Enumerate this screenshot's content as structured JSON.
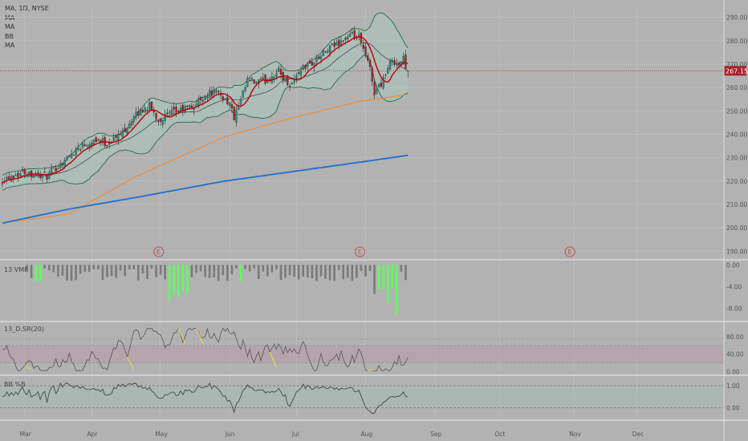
{
  "legend": {
    "title": "MA, 1D, NYSE",
    "studies": [
      "MA",
      "MA",
      "BB",
      "MA"
    ]
  },
  "price_tag": "267.15",
  "earnings_marker": "E",
  "pane_labels": {
    "volume": "13 VMF",
    "stoch": "13_D.SR(20)",
    "bb": "BB %B"
  },
  "colors": {
    "background": "#b2b2b2",
    "up_candle": "#2a8f86",
    "down_candle": "#b01e27",
    "fast_ma": "#c00000",
    "band": "#1f6f4a",
    "slow_ma_orange": "#f28a2e",
    "slow_ma_blue": "#1e6fd0",
    "histogram_green": "#5dff5d",
    "histogram_grey": "#7a7a7a",
    "price_line": "#d03030"
  },
  "chart_data": {
    "type": "candlestick",
    "x_ticks": [
      "Mar",
      "Apr",
      "May",
      "Jun",
      "Jul",
      "Aug",
      "Sep",
      "Oct",
      "Nov",
      "Dec"
    ],
    "price_axis": [
      190,
      200,
      210,
      220,
      230,
      240,
      250,
      260,
      270,
      280,
      290
    ],
    "price_axis_labels": [
      "190.00",
      "200.00",
      "210.00",
      "220.00",
      "230.00",
      "240.00",
      "250.00",
      "260.00",
      "270.00",
      "280.00",
      "290.00"
    ],
    "ylim": [
      187,
      294
    ],
    "last_price": 267.15,
    "close_anchors": [
      [
        0,
        221
      ],
      [
        10,
        224
      ],
      [
        20,
        222
      ],
      [
        28,
        229
      ],
      [
        35,
        235
      ],
      [
        42,
        238
      ],
      [
        47,
        236
      ],
      [
        53,
        240
      ],
      [
        58,
        246
      ],
      [
        62,
        250
      ],
      [
        66,
        252
      ],
      [
        70,
        246
      ],
      [
        76,
        249
      ],
      [
        82,
        251
      ],
      [
        86,
        252
      ],
      [
        90,
        256
      ],
      [
        94,
        258
      ],
      [
        98,
        257
      ],
      [
        102,
        253
      ],
      [
        104,
        247
      ],
      [
        107,
        254
      ],
      [
        110,
        263
      ],
      [
        114,
        262
      ],
      [
        118,
        263
      ],
      [
        124,
        267
      ],
      [
        128,
        262
      ],
      [
        130,
        262
      ],
      [
        134,
        268
      ],
      [
        140,
        271
      ],
      [
        146,
        276
      ],
      [
        152,
        280
      ],
      [
        157,
        282
      ],
      [
        160,
        281
      ],
      [
        162,
        276
      ],
      [
        165,
        268
      ],
      [
        167,
        258
      ],
      [
        170,
        262
      ],
      [
        173,
        268
      ],
      [
        175,
        272
      ],
      [
        178,
        270
      ],
      [
        180,
        272
      ],
      [
        182,
        267
      ]
    ],
    "fast_ma_period": 8,
    "bollinger": {
      "period": 20,
      "stddev": 2
    },
    "slow_ma_orange": {
      "points": [
        [
          0,
          202
        ],
        [
          30,
          206
        ],
        [
          60,
          222
        ],
        [
          100,
          239
        ],
        [
          130,
          247
        ],
        [
          160,
          254
        ],
        [
          182,
          257
        ]
      ]
    },
    "slow_ma_blue": {
      "points": [
        [
          0,
          202
        ],
        [
          30,
          208
        ],
        [
          60,
          213
        ],
        [
          100,
          220
        ],
        [
          130,
          224
        ],
        [
          160,
          228
        ],
        [
          182,
          231
        ]
      ]
    },
    "earnings_events_x": [
      0.216,
      0.494,
      0.784
    ],
    "volume_axis_labels": [
      "0.00",
      "-4.00",
      "-8.00"
    ],
    "volume_ylim": [
      -10,
      0.5
    ],
    "stoch_axis_labels": [
      "80.00",
      "40.00",
      "0.00"
    ],
    "stoch_ylim": [
      -5,
      110
    ],
    "stoch_band": [
      20,
      60
    ],
    "bb_axis_labels": [
      "1.00",
      "0.00"
    ],
    "bb_ylim": [
      -0.45,
      1.4
    ]
  }
}
